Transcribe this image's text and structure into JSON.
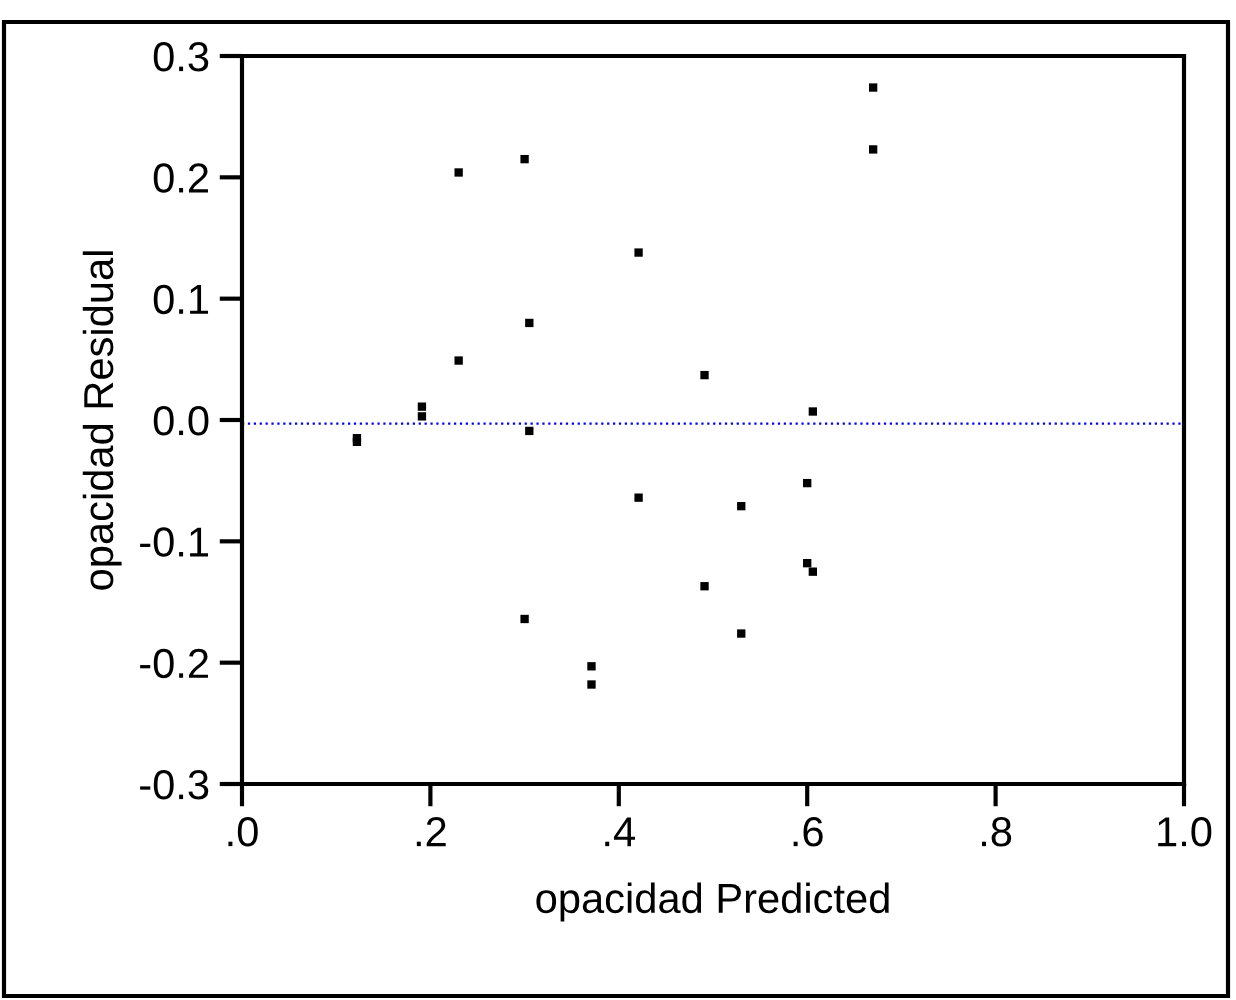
{
  "chart_data": {
    "type": "scatter",
    "xlabel": "opacidad Predicted",
    "ylabel": "opacidad Residual",
    "x": [
      0.122,
      0.122,
      0.191,
      0.191,
      0.23,
      0.23,
      0.3,
      0.305,
      0.305,
      0.3,
      0.371,
      0.371,
      0.421,
      0.421,
      0.491,
      0.491,
      0.53,
      0.53,
      0.6,
      0.6,
      0.606,
      0.606,
      0.67,
      0.67
    ],
    "series": [
      {
        "color": "#000000",
        "values": [
          -0.015,
          -0.018,
          0.011,
          0.003,
          0.204,
          0.049,
          0.215,
          0.08,
          -0.009,
          -0.164,
          -0.203,
          -0.218,
          0.138,
          -0.064,
          0.037,
          -0.137,
          -0.071,
          -0.176,
          -0.052,
          -0.118,
          -0.125,
          0.007,
          0.274,
          0.223
        ]
      }
    ],
    "xlim": [
      0,
      1
    ],
    "xticks": [
      {
        "value": 0,
        "label": ".0"
      },
      {
        "value": 0.2,
        "label": ".2"
      },
      {
        "value": 0.4,
        "label": ".4"
      },
      {
        "value": 0.6,
        "label": ".6"
      },
      {
        "value": 0.8,
        "label": ".8"
      },
      {
        "value": 1.0,
        "label": "1.0"
      }
    ],
    "ylim": [
      -0.3,
      0.3
    ],
    "yticks": [
      -0.3,
      -0.2,
      -0.1,
      {
        "value": 0,
        "label": "0.0"
      },
      0.1,
      0.2,
      0.3
    ],
    "ref_lines": [
      {
        "axis": "y",
        "value": -0.003,
        "color": "#0000ff",
        "line_style": "dotted"
      }
    ],
    "marker": "square",
    "grid": false,
    "legend": false
  }
}
